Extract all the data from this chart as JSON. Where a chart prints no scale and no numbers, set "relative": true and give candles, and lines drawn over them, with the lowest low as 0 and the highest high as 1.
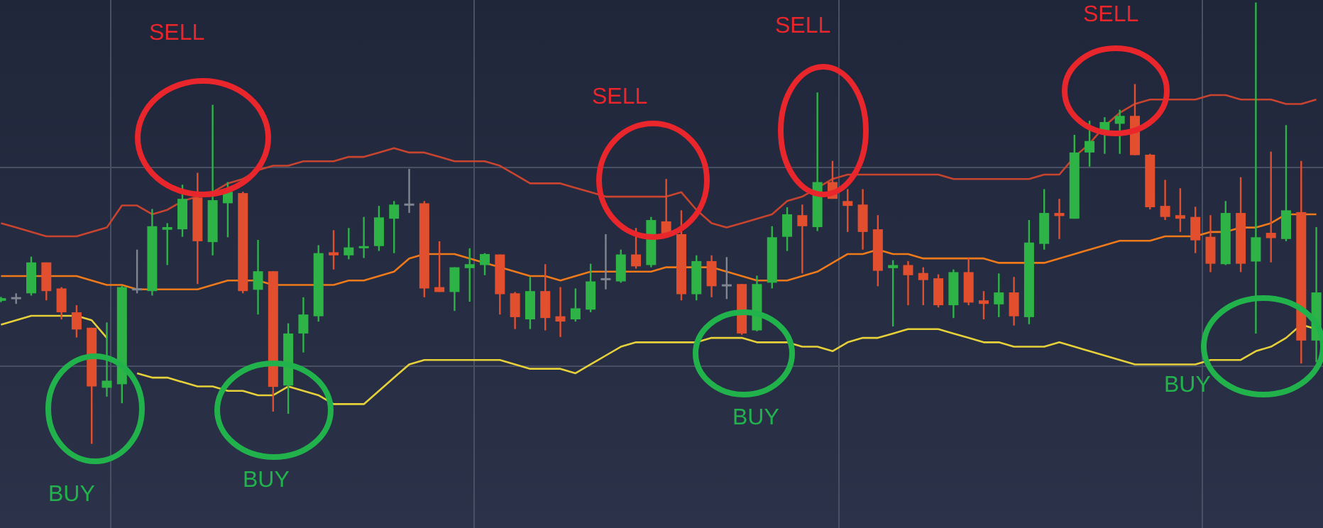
{
  "chart_data": {
    "type": "candlestick",
    "relative": true,
    "grid": true,
    "categories": [
      null,
      null,
      null,
      null,
      null,
      null,
      null,
      null,
      null,
      null,
      null,
      null,
      null,
      null,
      null,
      null,
      null,
      null,
      null,
      null,
      null,
      null,
      null,
      null,
      null,
      null,
      null,
      null,
      null,
      null,
      null,
      null,
      null,
      null,
      null,
      null,
      null,
      null,
      null,
      null,
      null,
      null,
      null,
      null,
      null,
      null,
      null,
      null,
      null,
      null,
      null,
      null,
      null,
      null,
      null,
      null,
      null,
      null,
      null,
      null,
      null,
      null,
      null,
      null,
      null,
      null,
      null,
      null,
      null,
      null,
      null,
      null,
      null,
      null,
      null,
      null,
      null,
      null,
      null,
      null,
      null,
      null,
      null,
      null,
      null,
      null,
      null,
      null
    ],
    "ohlc": [
      [
        0.324,
        0.333,
        0.321,
        0.33
      ],
      [
        0.33,
        0.341,
        0.317,
        0.33
      ],
      [
        0.341,
        0.424,
        0.336,
        0.411
      ],
      [
        0.411,
        0.411,
        0.325,
        0.346
      ],
      [
        0.352,
        0.355,
        0.282,
        0.298
      ],
      [
        0.298,
        0.314,
        0.241,
        0.259
      ],
      [
        0.263,
        0.263,
        0,
        0.13
      ],
      [
        0.127,
        0.275,
        0.107,
        0.143
      ],
      [
        0.135,
        0.358,
        0.092,
        0.355
      ],
      [
        0.35,
        0.44,
        0.341,
        0.35
      ],
      [
        0.346,
        0.532,
        0.336,
        0.493
      ],
      [
        0.485,
        0.5,
        0.405,
        0.491
      ],
      [
        0.486,
        0.587,
        0.469,
        0.555
      ],
      [
        0.558,
        0.614,
        0.362,
        0.459
      ],
      [
        0.457,
        0.768,
        0.427,
        0.552
      ],
      [
        0.545,
        0.593,
        0.468,
        0.571
      ],
      [
        0.568,
        0.571,
        0.341,
        0.346
      ],
      [
        0.349,
        0.462,
        0.293,
        0.391
      ],
      [
        0.391,
        0.391,
        0.073,
        0.129
      ],
      [
        0.132,
        0.273,
        0.068,
        0.25
      ],
      [
        0.25,
        0.332,
        0.207,
        0.293
      ],
      [
        0.289,
        0.45,
        0.277,
        0.432
      ],
      [
        0.434,
        0.484,
        0.395,
        0.427
      ],
      [
        0.427,
        0.489,
        0.418,
        0.445
      ],
      [
        0.443,
        0.514,
        0.421,
        0.448
      ],
      [
        0.448,
        0.539,
        0.437,
        0.513
      ],
      [
        0.51,
        0.55,
        0.432,
        0.542
      ],
      [
        0.542,
        0.623,
        0.523,
        0.542
      ],
      [
        0.545,
        0.55,
        0.332,
        0.352
      ],
      [
        0.355,
        0.459,
        0.344,
        0.344
      ],
      [
        0.344,
        0.4,
        0.301,
        0.4
      ],
      [
        0.398,
        0.443,
        0.322,
        0.407
      ],
      [
        0.405,
        0.432,
        0.382,
        0.43
      ],
      [
        0.429,
        0.429,
        0.293,
        0.339
      ],
      [
        0.341,
        0.344,
        0.26,
        0.287
      ],
      [
        0.282,
        0.378,
        0.26,
        0.346
      ],
      [
        0.346,
        0.407,
        0.257,
        0.285
      ],
      [
        0.289,
        0.355,
        0.242,
        0.277
      ],
      [
        0.282,
        0.352,
        0.277,
        0.307
      ],
      [
        0.304,
        0.408,
        0.298,
        0.368
      ],
      [
        0.373,
        0.475,
        0.35,
        0.373
      ],
      [
        0.368,
        0.44,
        0.365,
        0.429
      ],
      [
        0.429,
        0.489,
        0.397,
        0.402
      ],
      [
        0.405,
        0.514,
        0.4,
        0.507
      ],
      [
        0.504,
        0.6,
        0.469,
        0.472
      ],
      [
        0.475,
        0.529,
        0.325,
        0.339
      ],
      [
        0.339,
        0.427,
        0.325,
        0.414
      ],
      [
        0.414,
        0.427,
        0.332,
        0.357
      ],
      [
        0.359,
        0.423,
        0.328,
        0.359
      ],
      [
        0.362,
        0.362,
        0.247,
        0.25
      ],
      [
        0.257,
        0.381,
        0.255,
        0.362
      ],
      [
        0.365,
        0.493,
        0.352,
        0.468
      ],
      [
        0.469,
        0.536,
        0.437,
        0.52
      ],
      [
        0.518,
        0.542,
        0.386,
        0.493
      ],
      [
        0.491,
        0.796,
        0.482,
        0.593
      ],
      [
        0.593,
        0.641,
        0.555,
        0.555
      ],
      [
        0.55,
        0.577,
        0.48,
        0.539
      ],
      [
        0.542,
        0.577,
        0.44,
        0.48
      ],
      [
        0.486,
        0.518,
        0.357,
        0.392
      ],
      [
        0.398,
        0.416,
        0.266,
        0.405
      ],
      [
        0.405,
        0.414,
        0.314,
        0.382
      ],
      [
        0.387,
        0.4,
        0.314,
        0.371
      ],
      [
        0.375,
        0.384,
        0.309,
        0.314
      ],
      [
        0.314,
        0.395,
        0.285,
        0.389
      ],
      [
        0.389,
        0.421,
        0.314,
        0.32
      ],
      [
        0.325,
        0.346,
        0.282,
        0.317
      ],
      [
        0.316,
        0.386,
        0.287,
        0.343
      ],
      [
        0.343,
        0.378,
        0.268,
        0.289
      ],
      [
        0.287,
        0.507,
        0.271,
        0.456
      ],
      [
        0.453,
        0.577,
        0.44,
        0.523
      ],
      [
        0.523,
        0.555,
        0.464,
        0.516
      ],
      [
        0.51,
        0.7,
        0.51,
        0.66
      ],
      [
        0.66,
        0.732,
        0.628,
        0.686
      ],
      [
        0.702,
        0.74,
        0.657,
        0.729
      ],
      [
        0.725,
        0.757,
        0.657,
        0.743
      ],
      [
        0.743,
        0.815,
        0.654,
        0.654
      ],
      [
        0.655,
        0.657,
        0.531,
        0.536
      ],
      [
        0.539,
        0.598,
        0.507,
        0.514
      ],
      [
        0.518,
        0.579,
        0.48,
        0.51
      ],
      [
        0.514,
        0.537,
        0.432,
        0.461
      ],
      [
        0.469,
        0.518,
        0.389,
        0.408
      ],
      [
        0.407,
        0.55,
        0.405,
        0.523
      ],
      [
        0.523,
        0.604,
        0.389,
        0.408
      ],
      [
        0.413,
        1,
        0.25,
        0.468
      ],
      [
        0.478,
        0.662,
        0.411,
        0.466
      ],
      [
        0.464,
        0.722,
        0.459,
        0.529
      ],
      [
        0.525,
        0.641,
        0.182,
        0.234
      ],
      [
        0.234,
        0.491,
        0.185,
        0.343
      ]
    ],
    "colors": [
      "#2eb347",
      "#808691",
      "#2eb347",
      "#e24f2e",
      "#e24f2e",
      "#e24f2e",
      "#e24f2e",
      "#2eb347",
      "#2eb347",
      "#808691",
      "#2eb347",
      "#2eb347",
      "#2eb347",
      "#e24f2e",
      "#2eb347",
      "#2eb347",
      "#e24f2e",
      "#2eb347",
      "#e24f2e",
      "#2eb347",
      "#2eb347",
      "#2eb347",
      "#e24f2e",
      "#2eb347",
      "#2eb347",
      "#2eb347",
      "#2eb347",
      "#808691",
      "#e24f2e",
      "#e24f2e",
      "#2eb347",
      "#2eb347",
      "#2eb347",
      "#e24f2e",
      "#e24f2e",
      "#2eb347",
      "#e24f2e",
      "#e24f2e",
      "#2eb347",
      "#2eb347",
      "#808691",
      "#2eb347",
      "#e24f2e",
      "#2eb347",
      "#e24f2e",
      "#e24f2e",
      "#2eb347",
      "#e24f2e",
      "#808691",
      "#e24f2e",
      "#2eb347",
      "#2eb347",
      "#2eb347",
      "#e24f2e",
      "#2eb347",
      "#e24f2e",
      "#e24f2e",
      "#e24f2e",
      "#e24f2e",
      "#2eb347",
      "#e24f2e",
      "#e24f2e",
      "#e24f2e",
      "#2eb347",
      "#e24f2e",
      "#e24f2e",
      "#2eb347",
      "#e24f2e",
      "#2eb347",
      "#2eb347",
      "#e24f2e",
      "#2eb347",
      "#2eb347",
      "#2eb347",
      "#2eb347",
      "#e24f2e",
      "#e24f2e",
      "#e24f2e",
      "#e24f2e",
      "#e24f2e",
      "#e24f2e",
      "#2eb347",
      "#e24f2e",
      "#2eb347",
      "#e24f2e",
      "#2eb347",
      "#e24f2e",
      "#2eb347"
    ],
    "series": [
      {
        "type": "line",
        "color": "#c9442f",
        "values": [
          0.5,
          0.49,
          0.48,
          0.47,
          0.47,
          0.47,
          0.48,
          0.49,
          0.54,
          0.54,
          0.52,
          0.53,
          0.55,
          0.56,
          0.57,
          0.59,
          0.6,
          0.62,
          0.63,
          0.63,
          0.64,
          0.64,
          0.64,
          0.65,
          0.65,
          0.66,
          0.67,
          0.66,
          0.66,
          0.65,
          0.64,
          0.64,
          0.64,
          0.63,
          0.61,
          0.59,
          0.59,
          0.59,
          0.58,
          0.57,
          0.56,
          0.56,
          0.56,
          0.56,
          0.56,
          0.57,
          0.53,
          0.5,
          0.49,
          0.5,
          0.51,
          0.52,
          0.55,
          0.56,
          0.58,
          0.6,
          0.61,
          0.61,
          0.61,
          0.61,
          0.61,
          0.61,
          0.61,
          0.6,
          0.6,
          0.6,
          0.6,
          0.6,
          0.6,
          0.61,
          0.61,
          0.65,
          0.68,
          0.72,
          0.75,
          0.77,
          0.78,
          0.78,
          0.78,
          0.78,
          0.79,
          0.79,
          0.78,
          0.78,
          0.78,
          0.77,
          0.77,
          0.78
        ]
      },
      {
        "type": "line",
        "color": "#f07a1a",
        "values": [
          0.38,
          0.38,
          0.38,
          0.38,
          0.38,
          0.38,
          0.37,
          0.36,
          0.36,
          0.35,
          0.35,
          0.35,
          0.35,
          0.35,
          0.36,
          0.37,
          0.37,
          0.37,
          0.36,
          0.36,
          0.36,
          0.36,
          0.36,
          0.37,
          0.37,
          0.38,
          0.39,
          0.42,
          0.43,
          0.43,
          0.43,
          0.42,
          0.41,
          0.4,
          0.39,
          0.38,
          0.38,
          0.37,
          0.38,
          0.39,
          0.39,
          0.39,
          0.39,
          0.39,
          0.4,
          0.4,
          0.4,
          0.4,
          0.39,
          0.38,
          0.37,
          0.37,
          0.37,
          0.38,
          0.39,
          0.41,
          0.43,
          0.43,
          0.44,
          0.43,
          0.43,
          0.42,
          0.42,
          0.42,
          0.42,
          0.42,
          0.41,
          0.41,
          0.41,
          0.41,
          0.42,
          0.43,
          0.44,
          0.45,
          0.46,
          0.46,
          0.46,
          0.47,
          0.47,
          0.47,
          0.48,
          0.48,
          0.49,
          0.49,
          0.5,
          0.52,
          0.52,
          0.52
        ]
      },
      {
        "type": "line",
        "color": "#e6d13a",
        "values": [
          0.27,
          0.28,
          0.29,
          0.29,
          0.29,
          0.29,
          0.28,
          0.24,
          null,
          0.16,
          0.15,
          0.15,
          0.14,
          0.13,
          0.13,
          0.12,
          0.12,
          0.11,
          0.11,
          0.13,
          0.12,
          0.11,
          0.09,
          0.09,
          0.09,
          0.12,
          0.15,
          0.18,
          0.19,
          0.19,
          0.19,
          0.19,
          0.19,
          0.19,
          0.18,
          0.17,
          0.17,
          0.17,
          0.16,
          0.18,
          0.2,
          0.22,
          0.23,
          0.23,
          0.23,
          0.23,
          0.23,
          0.24,
          0.24,
          0.24,
          0.23,
          0.23,
          0.23,
          0.22,
          0.22,
          0.21,
          0.23,
          0.24,
          0.24,
          0.25,
          0.26,
          0.26,
          0.26,
          0.25,
          0.24,
          0.23,
          0.23,
          0.22,
          0.22,
          0.22,
          0.23,
          0.22,
          0.21,
          0.2,
          0.19,
          0.18,
          0.18,
          0.18,
          0.18,
          0.18,
          0.19,
          0.19,
          0.19,
          0.21,
          0.22,
          0.24,
          0.27,
          0.26
        ]
      }
    ],
    "annotations": [
      "SELL",
      "SELL",
      "SELL",
      "SELL",
      "BUY",
      "BUY",
      "BUY",
      "BUY"
    ]
  }
}
